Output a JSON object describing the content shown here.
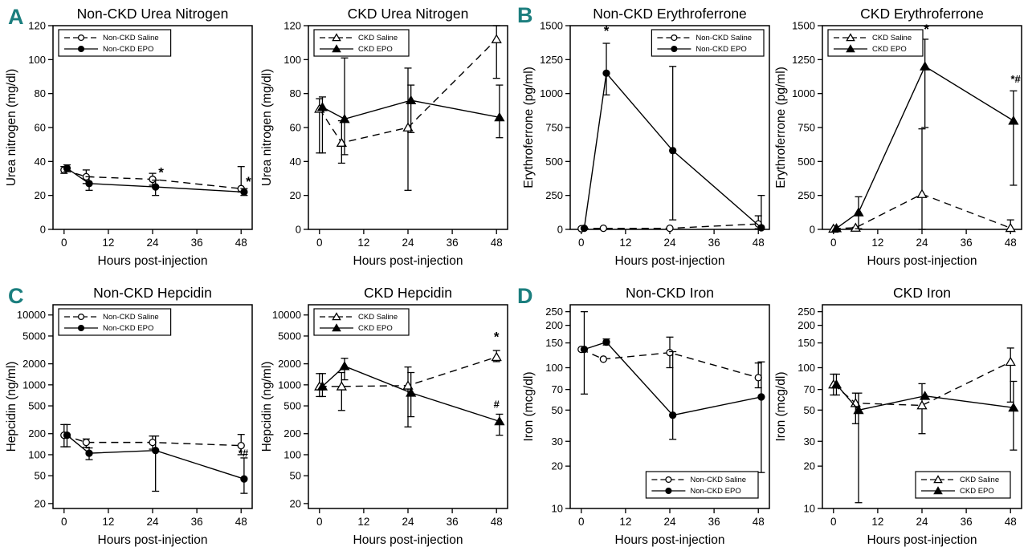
{
  "figure": {
    "background": "#ffffff",
    "accent_teal": "#1B7E7E",
    "line_color": "#000000"
  },
  "panel_labels": [
    "A",
    "B",
    "C",
    "D"
  ],
  "chart_data": [
    {
      "id": "non-ckd-urea-nitrogen",
      "panel": "A",
      "type": "line",
      "title": "Non-CKD Urea Nitrogen",
      "xlabel": "Hours post-injection",
      "ylabel": "Urea nitrogen (mg/dl)",
      "yscale": "linear",
      "ylim": [
        0,
        120
      ],
      "yticks": [
        0,
        20,
        40,
        60,
        80,
        100,
        120
      ],
      "xlim": [
        -3,
        51
      ],
      "xticks": [
        0,
        12,
        24,
        36,
        48
      ],
      "x": [
        0,
        6,
        24,
        48
      ],
      "legend_pos": "top-left",
      "grid": false,
      "series": [
        {
          "name": "Non-CKD Saline",
          "marker": "circle",
          "fill": "open",
          "line": "dashed",
          "dx": 0,
          "y": [
            35,
            31,
            29.5,
            24
          ],
          "err_lo": [
            33,
            27,
            26,
            22
          ],
          "err_hi": [
            37,
            35,
            33,
            37
          ]
        },
        {
          "name": "Non-CKD EPO",
          "marker": "circle",
          "fill": "filled",
          "line": "solid",
          "dx": 0.8,
          "y": [
            36,
            27,
            25,
            22
          ],
          "err_lo": [
            34,
            23,
            20,
            20
          ],
          "err_hi": [
            38,
            31,
            29,
            24
          ]
        }
      ],
      "annotations": [
        {
          "x": 26.3,
          "y": 31,
          "text": "*"
        },
        {
          "x": 50,
          "y": 25.5,
          "text": "*"
        }
      ]
    },
    {
      "id": "ckd-urea-nitrogen",
      "panel": "A",
      "type": "line",
      "title": "CKD Urea Nitrogen",
      "xlabel": "Hours post-injection",
      "ylabel": "Urea nitrogen (mg/dl)",
      "yscale": "linear",
      "ylim": [
        0,
        120
      ],
      "yticks": [
        0,
        20,
        40,
        60,
        80,
        100,
        120
      ],
      "xlim": [
        -3,
        51
      ],
      "xticks": [
        0,
        12,
        24,
        36,
        48
      ],
      "x": [
        0,
        6,
        24,
        48
      ],
      "legend_pos": "top-left",
      "grid": false,
      "series": [
        {
          "name": "CKD Saline",
          "marker": "triangle",
          "fill": "open",
          "line": "dashed",
          "dx": 0,
          "y": [
            71,
            51,
            60,
            112
          ],
          "err_lo": [
            45,
            39,
            23,
            89
          ],
          "err_hi": [
            77,
            64,
            95,
            121
          ]
        },
        {
          "name": "CKD EPO",
          "marker": "triangle",
          "fill": "filled",
          "line": "solid",
          "dx": 0.8,
          "y": [
            72,
            65,
            76,
            66
          ],
          "err_lo": [
            45,
            44,
            57,
            54
          ],
          "err_hi": [
            78,
            101,
            85,
            85
          ]
        }
      ],
      "annotations": []
    },
    {
      "id": "non-ckd-erythroferrone",
      "panel": "B",
      "type": "line",
      "title": "Non-CKD Erythroferrone",
      "xlabel": "Hours post-injection",
      "ylabel": "Erythroferrone (pg/ml)",
      "yscale": "linear",
      "ylim": [
        0,
        1500
      ],
      "yticks": [
        0,
        250,
        500,
        750,
        1000,
        1250,
        1500
      ],
      "xlim": [
        -3,
        51
      ],
      "xticks": [
        0,
        12,
        24,
        36,
        48
      ],
      "x": [
        0,
        6,
        24,
        48
      ],
      "legend_pos": "top-right",
      "grid": false,
      "series": [
        {
          "name": "Non-CKD Saline",
          "marker": "circle",
          "fill": "open",
          "line": "dashed",
          "dx": 0,
          "y": [
            5,
            8,
            8,
            40
          ],
          "err_lo": [
            5,
            8,
            8,
            5
          ],
          "err_hi": [
            5,
            8,
            8,
            100
          ]
        },
        {
          "name": "Non-CKD EPO",
          "marker": "circle",
          "fill": "filled",
          "line": "solid",
          "dx": 0.8,
          "y": [
            8,
            1150,
            580,
            12
          ],
          "err_lo": [
            8,
            990,
            70,
            0
          ],
          "err_hi": [
            8,
            1370,
            1200,
            250
          ]
        }
      ],
      "annotations": [
        {
          "x": 6.8,
          "y": 1430,
          "text": "*"
        }
      ]
    },
    {
      "id": "ckd-erythroferrone",
      "panel": "B",
      "type": "line",
      "title": "CKD Erythroferrone",
      "xlabel": "Hours post-injection",
      "ylabel": "Erythroferrone (pg/ml)",
      "yscale": "linear",
      "ylim": [
        0,
        1500
      ],
      "yticks": [
        0,
        250,
        500,
        750,
        1000,
        1250,
        1500
      ],
      "xlim": [
        -3,
        51
      ],
      "xticks": [
        0,
        12,
        24,
        36,
        48
      ],
      "x": [
        0,
        6,
        24,
        48
      ],
      "legend_pos": "top-left",
      "grid": false,
      "series": [
        {
          "name": "CKD Saline",
          "marker": "triangle",
          "fill": "open",
          "line": "dashed",
          "dx": 0,
          "y": [
            5,
            12,
            260,
            10
          ],
          "err_lo": [
            5,
            5,
            0,
            0
          ],
          "err_hi": [
            5,
            15,
            740,
            70
          ]
        },
        {
          "name": "CKD EPO",
          "marker": "triangle",
          "fill": "filled",
          "line": "solid",
          "dx": 0.8,
          "y": [
            8,
            125,
            1200,
            800
          ],
          "err_lo": [
            8,
            5,
            750,
            325
          ],
          "err_hi": [
            8,
            240,
            1400,
            1020
          ]
        }
      ],
      "annotations": [
        {
          "x": 25.2,
          "y": 1440,
          "text": "*"
        },
        {
          "x": 49.4,
          "y": 1080,
          "text": "*#"
        }
      ]
    },
    {
      "id": "non-ckd-hepcidin",
      "panel": "C",
      "type": "line",
      "title": "Non-CKD Hepcidin",
      "xlabel": "Hours post-injection",
      "ylabel": "Hepcidin (ng/ml)",
      "yscale": "log",
      "ylim": [
        17,
        14000
      ],
      "yticks": [
        20,
        50,
        100,
        200,
        500,
        1000,
        2000,
        5000,
        10000
      ],
      "xlim": [
        -3,
        51
      ],
      "xticks": [
        0,
        12,
        24,
        36,
        48
      ],
      "x": [
        0,
        6,
        24,
        48
      ],
      "legend_pos": "top-left",
      "grid": false,
      "series": [
        {
          "name": "Non-CKD Saline",
          "marker": "circle",
          "fill": "open",
          "line": "dashed",
          "dx": 0,
          "y": [
            190,
            150,
            150,
            135
          ],
          "err_lo": [
            130,
            128,
            120,
            100
          ],
          "err_hi": [
            270,
            168,
            185,
            195
          ]
        },
        {
          "name": "Non-CKD EPO",
          "marker": "circle",
          "fill": "filled",
          "line": "solid",
          "dx": 0.8,
          "y": [
            190,
            105,
            115,
            45
          ],
          "err_lo": [
            130,
            85,
            30,
            28
          ],
          "err_hi": [
            270,
            125,
            185,
            90
          ]
        }
      ],
      "annotations": [
        {
          "x": 48.6,
          "y": 93,
          "text": "*#"
        }
      ]
    },
    {
      "id": "ckd-hepcidin",
      "panel": "C",
      "type": "line",
      "title": "CKD Hepcidin",
      "xlabel": "Hours post-injection",
      "ylabel": "Hepcidin (ng/ml)",
      "yscale": "log",
      "ylim": [
        17,
        14000
      ],
      "yticks": [
        20,
        50,
        100,
        200,
        500,
        1000,
        2000,
        5000,
        10000
      ],
      "xlim": [
        -3,
        51
      ],
      "xticks": [
        0,
        12,
        24,
        36,
        48
      ],
      "x": [
        0,
        6,
        24,
        48
      ],
      "legend_pos": "top-left",
      "grid": false,
      "series": [
        {
          "name": "CKD Saline",
          "marker": "triangle",
          "fill": "open",
          "line": "dashed",
          "dx": 0,
          "y": [
            950,
            950,
            975,
            2500
          ],
          "err_lo": [
            680,
            430,
            250,
            2150
          ],
          "err_hi": [
            1450,
            1500,
            1800,
            3100
          ]
        },
        {
          "name": "CKD EPO",
          "marker": "triangle",
          "fill": "filled",
          "line": "solid",
          "dx": 0.8,
          "y": [
            950,
            1850,
            770,
            300
          ],
          "err_lo": [
            680,
            1180,
            350,
            190
          ],
          "err_hi": [
            1450,
            2400,
            1500,
            380
          ]
        }
      ],
      "annotations": [
        {
          "x": 48,
          "y": 4200,
          "text": "*"
        },
        {
          "x": 48,
          "y": 470,
          "text": "#"
        }
      ]
    },
    {
      "id": "non-ckd-iron",
      "panel": "D",
      "type": "line",
      "title": "Non-CKD Iron",
      "xlabel": "Hours post-injection",
      "ylabel": "Iron (mcg/dl)",
      "yscale": "log",
      "ylim": [
        10,
        280
      ],
      "yticks": [
        10,
        20,
        30,
        50,
        70,
        100,
        150,
        200,
        250
      ],
      "xlim": [
        -3,
        51
      ],
      "xticks": [
        0,
        12,
        24,
        36,
        48
      ],
      "x": [
        0,
        6,
        24,
        48
      ],
      "legend_pos": "bottom-right",
      "grid": false,
      "series": [
        {
          "name": "Non-CKD Saline",
          "marker": "circle",
          "fill": "open",
          "line": "dashed",
          "dx": 0,
          "y": [
            135,
            115,
            128,
            85
          ],
          "err_lo": [
            135,
            115,
            100,
            72
          ],
          "err_hi": [
            135,
            115,
            165,
            108
          ]
        },
        {
          "name": "Non-CKD EPO",
          "marker": "circle",
          "fill": "filled",
          "line": "solid",
          "dx": 0.8,
          "y": [
            135,
            152,
            46,
            62
          ],
          "err_lo": [
            65,
            145,
            31,
            18
          ],
          "err_hi": [
            250,
            160,
            130,
            110
          ]
        }
      ],
      "annotations": []
    },
    {
      "id": "ckd-iron",
      "panel": "D",
      "type": "line",
      "title": "CKD Iron",
      "xlabel": "Hours post-injection",
      "ylabel": "Iron (mcg/dl)",
      "yscale": "log",
      "ylim": [
        10,
        280
      ],
      "yticks": [
        10,
        20,
        30,
        50,
        70,
        100,
        150,
        200,
        250
      ],
      "xlim": [
        -3,
        51
      ],
      "xticks": [
        0,
        12,
        24,
        36,
        48
      ],
      "x": [
        0,
        6,
        24,
        48
      ],
      "legend_pos": "bottom-right",
      "grid": false,
      "series": [
        {
          "name": "CKD Saline",
          "marker": "triangle",
          "fill": "open",
          "line": "dashed",
          "dx": 0,
          "y": [
            76,
            56,
            54,
            110
          ],
          "err_lo": [
            64,
            40,
            34,
            57
          ],
          "err_hi": [
            90,
            66,
            77,
            138
          ]
        },
        {
          "name": "CKD EPO",
          "marker": "triangle",
          "fill": "filled",
          "line": "solid",
          "dx": 0.8,
          "y": [
            76,
            50,
            63,
            52
          ],
          "err_lo": [
            64,
            11,
            63,
            26
          ],
          "err_hi": [
            90,
            66,
            63,
            80
          ]
        }
      ],
      "annotations": []
    }
  ]
}
